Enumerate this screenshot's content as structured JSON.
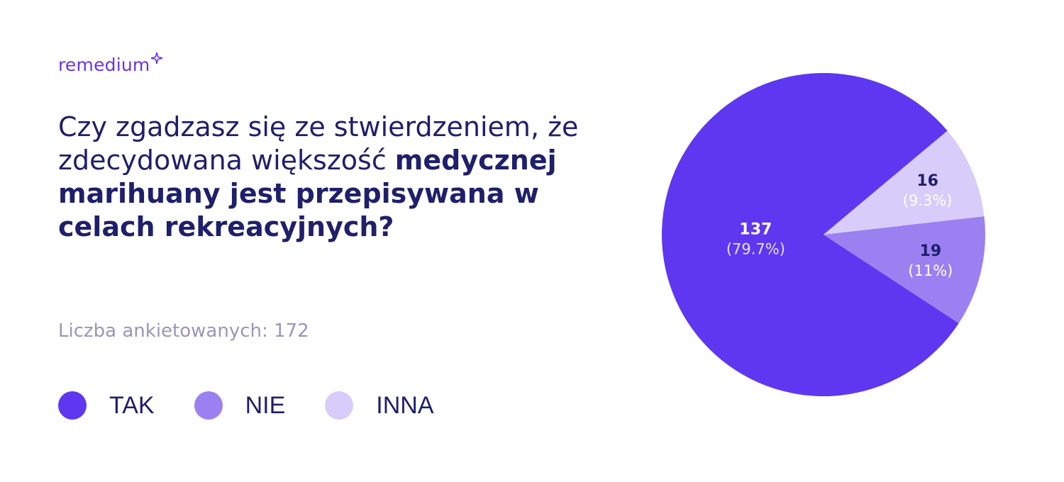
{
  "brand": {
    "name": "remedium"
  },
  "question": {
    "regular": "Czy zgadzasz się ze stwierdzeniem, że zdecydowana większość ",
    "bold": "medycznej marihuany jest przepisywana w celach rekreacyjnych?"
  },
  "respondents": "Liczba ankietowanych: 172",
  "colors": {
    "tak": "#5f37f0",
    "nie": "#9b80f2",
    "inna": "#d8ccfb",
    "text_dark": "#1f1f6b",
    "text_light": "#9a96b8"
  },
  "chart_data": {
    "type": "pie",
    "total": 172,
    "slices": [
      {
        "label": "TAK",
        "value": 137,
        "percent_label": "(79.7%)",
        "color": "#5f37f0"
      },
      {
        "label": "NIE",
        "value": 19,
        "percent_label": "(11%)",
        "color": "#9b80f2"
      },
      {
        "label": "INNA",
        "value": 16,
        "percent_label": "(9.3%)",
        "color": "#d8ccfb"
      }
    ]
  }
}
